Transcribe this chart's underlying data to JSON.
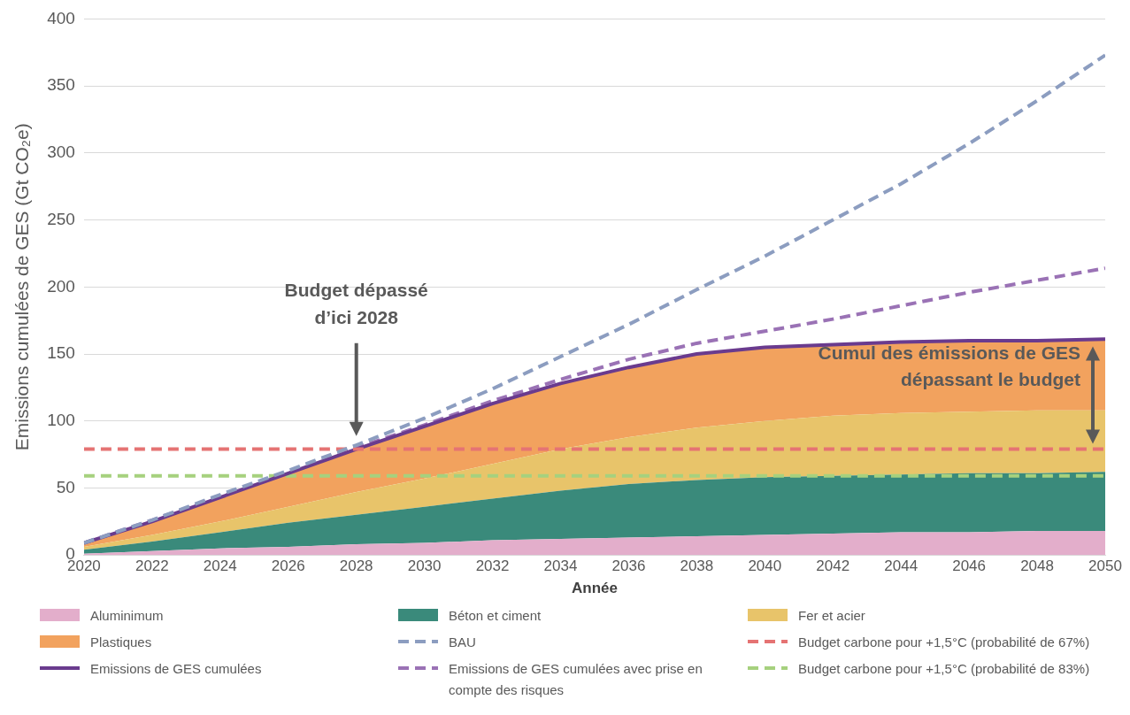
{
  "chart_data": {
    "type": "area",
    "stacked": true,
    "xlabel": "Année",
    "ylabel": "Emissions cumulées de GES (Gt CO₂e)",
    "x": [
      2020,
      2022,
      2024,
      2026,
      2028,
      2030,
      2032,
      2034,
      2036,
      2038,
      2040,
      2042,
      2044,
      2046,
      2048,
      2050
    ],
    "xlim": [
      2020,
      2050
    ],
    "xticks": [
      2020,
      2022,
      2024,
      2026,
      2028,
      2030,
      2032,
      2034,
      2036,
      2038,
      2040,
      2042,
      2044,
      2046,
      2048,
      2050
    ],
    "ylim": [
      0,
      400
    ],
    "yticks": [
      0,
      50,
      100,
      150,
      200,
      250,
      300,
      350,
      400
    ],
    "grid": "y",
    "legend": "bottom",
    "series": [
      {
        "name": "Aluminimum",
        "color": "#e3aecb",
        "values": [
          1,
          3,
          5,
          6,
          8,
          9,
          11,
          12,
          13,
          14,
          15,
          16,
          17,
          17,
          18,
          18
        ]
      },
      {
        "name": "Béton et ciment",
        "color": "#3a8a7b",
        "values": [
          3,
          7,
          12,
          18,
          22,
          27,
          31,
          36,
          40,
          42,
          43,
          43,
          43,
          44,
          43,
          44
        ]
      },
      {
        "name": "Fer et acier",
        "color": "#e8c46a",
        "values": [
          2,
          5,
          8,
          12,
          17,
          21,
          26,
          31,
          35,
          39,
          42,
          45,
          46,
          46,
          47,
          46
        ]
      },
      {
        "name": "Plastiques",
        "color": "#f2a25e",
        "values": [
          3,
          10,
          18,
          25,
          32,
          39,
          45,
          49,
          53,
          55,
          55,
          53,
          53,
          53,
          52,
          53
        ]
      },
      {
        "name": "BAU",
        "type": "line",
        "line_style": "dashed",
        "color": "#8c9dc0",
        "values": [
          9,
          26,
          45,
          63,
          82,
          102,
          124,
          148,
          172,
          198,
          223,
          250,
          277,
          307,
          339,
          373
        ]
      },
      {
        "name": "Budget carbone pour +1,5°C (probabilité de 67%)",
        "type": "line",
        "line_style": "dashed",
        "color": "#e57373",
        "values": [
          79,
          79,
          79,
          79,
          79,
          79,
          79,
          79,
          79,
          79,
          79,
          79,
          79,
          79,
          79,
          79
        ]
      },
      {
        "name": "Emissions de GES cumulées",
        "type": "line",
        "line_style": "solid",
        "color": "#6a3b8e",
        "values": [
          9,
          25,
          43,
          61,
          79,
          96,
          113,
          128,
          140,
          150,
          155,
          157,
          159,
          160,
          160,
          161
        ]
      },
      {
        "name": "Emissions de GES cumulées avec prise en compte des risques",
        "type": "line",
        "line_style": "dashed",
        "color": "#9a72b5",
        "values": [
          9,
          26,
          44,
          62,
          80,
          97,
          115,
          131,
          146,
          158,
          167,
          176,
          186,
          196,
          205,
          214
        ]
      },
      {
        "name": "Budget carbone pour +1,5°C (probabilité de 83%)",
        "type": "line",
        "line_style": "dashed",
        "color": "#a6d17e",
        "values": [
          59,
          59,
          59,
          59,
          59,
          59,
          59,
          59,
          59,
          59,
          59,
          59,
          59,
          59,
          59,
          59
        ]
      }
    ],
    "annotations": [
      "Budget dépassé d’ici 2028",
      "Cumul des émissions de GES dépassant le budget"
    ]
  }
}
